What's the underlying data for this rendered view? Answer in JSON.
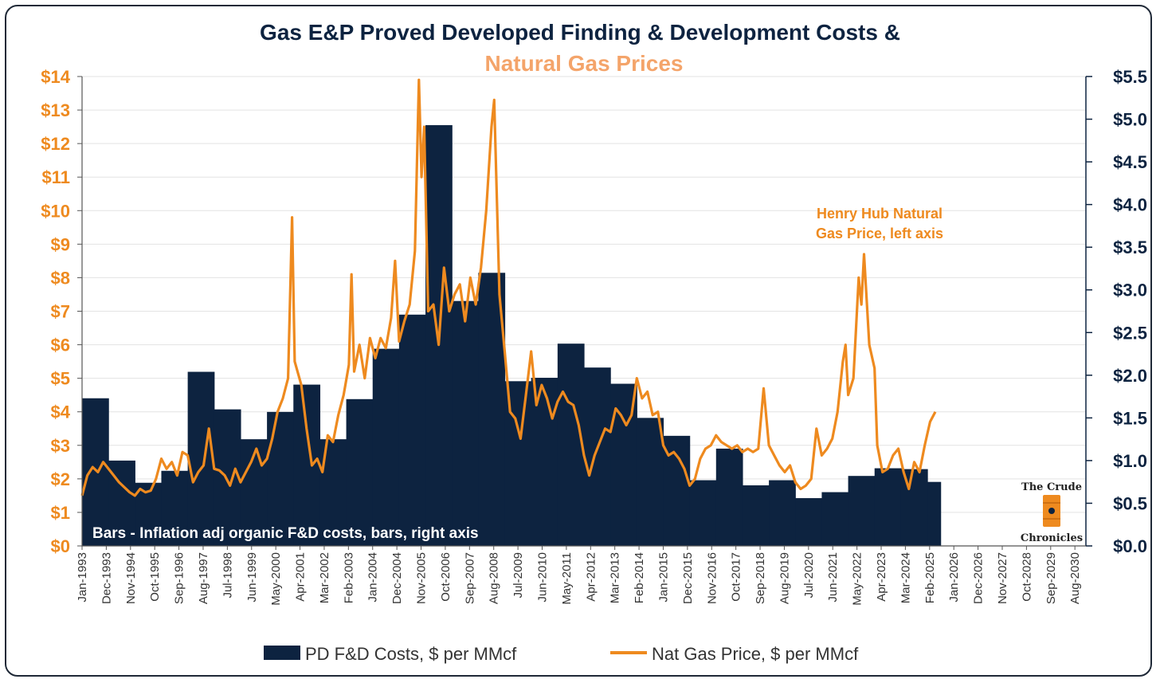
{
  "chart_data": {
    "type": "bar+line",
    "title": "Gas E&P Proved Developed Finding & Development Costs &",
    "subtitle": "Natural Gas Prices",
    "left_axis": {
      "range": [
        0,
        14
      ],
      "ticks": [
        0,
        1,
        2,
        3,
        4,
        5,
        6,
        7,
        8,
        9,
        10,
        11,
        12,
        13,
        14
      ],
      "tick_labels": [
        "$0",
        "$1",
        "$2",
        "$3",
        "$4",
        "$5",
        "$6",
        "$7",
        "$8",
        "$9",
        "$10",
        "$11",
        "$12",
        "$13",
        "$14"
      ],
      "color": "#ee8a1f"
    },
    "right_axis": {
      "range": [
        0,
        5.5
      ],
      "ticks": [
        0,
        0.5,
        1.0,
        1.5,
        2.0,
        2.5,
        3.0,
        3.5,
        4.0,
        4.5,
        5.0,
        5.5
      ],
      "tick_labels": [
        "$0.0",
        "$0.5",
        "$1.0",
        "$1.5",
        "$2.0",
        "$2.5",
        "$3.0",
        "$3.5",
        "$4.0",
        "$4.5",
        "$5.0",
        "$5.5"
      ],
      "color": "#0d2340"
    },
    "x_axis": {
      "range": [
        "1993-01",
        "2030-12"
      ],
      "tick_labels": [
        "Jan-1993",
        "Dec-1993",
        "Nov-1994",
        "Oct-1995",
        "Sep-1996",
        "Aug-1997",
        "Jul-1998",
        "Jun-1999",
        "May-2000",
        "Apr-2001",
        "Mar-2002",
        "Feb-2003",
        "Jan-2004",
        "Dec-2004",
        "Nov-2005",
        "Oct-2006",
        "Sep-2007",
        "Aug-2008",
        "Jul-2009",
        "Jun-2010",
        "May-2011",
        "Apr-2012",
        "Mar-2013",
        "Feb-2014",
        "Jan-2015",
        "Dec-2015",
        "Nov-2016",
        "Oct-2017",
        "Sep-2018",
        "Aug-2019",
        "Jul-2020",
        "Jun-2021",
        "May-2022",
        "Apr-2023",
        "Mar-2024",
        "Feb-2025",
        "Jan-2026",
        "Dec-2026",
        "Nov-2027",
        "Oct-2028",
        "Sep-2029",
        "Aug-2030"
      ],
      "ticks_month_index": [
        0,
        11,
        22,
        33,
        44,
        55,
        66,
        77,
        88,
        99,
        110,
        121,
        132,
        143,
        154,
        165,
        176,
        187,
        198,
        209,
        220,
        231,
        242,
        253,
        264,
        275,
        286,
        297,
        308,
        319,
        330,
        341,
        352,
        363,
        374,
        385,
        396,
        407,
        418,
        429,
        440,
        451
      ]
    },
    "series": [
      {
        "name": "PD F&D Costs, $ per MMcf",
        "type": "bar",
        "axis": "right",
        "color": "#0d2340",
        "periods": [
          {
            "start": 1993,
            "end": 1994,
            "value": 1.73
          },
          {
            "start": 1994,
            "end": 1995,
            "value": 1.0
          },
          {
            "start": 1995,
            "end": 1996,
            "value": 0.74
          },
          {
            "start": 1996,
            "end": 1997,
            "value": 0.88
          },
          {
            "start": 1997,
            "end": 1998,
            "value": 2.04
          },
          {
            "start": 1998,
            "end": 1999,
            "value": 1.6
          },
          {
            "start": 1999,
            "end": 2000,
            "value": 1.25
          },
          {
            "start": 2000,
            "end": 2001,
            "value": 1.57
          },
          {
            "start": 2001,
            "end": 2002,
            "value": 1.89
          },
          {
            "start": 2002,
            "end": 2003,
            "value": 1.25
          },
          {
            "start": 2003,
            "end": 2004,
            "value": 1.72
          },
          {
            "start": 2004,
            "end": 2005,
            "value": 2.31
          },
          {
            "start": 2005,
            "end": 2006,
            "value": 2.71
          },
          {
            "start": 2006,
            "end": 2007,
            "value": 4.93
          },
          {
            "start": 2007,
            "end": 2008,
            "value": 2.87
          },
          {
            "start": 2008,
            "end": 2009,
            "value": 3.2
          },
          {
            "start": 2009,
            "end": 2010,
            "value": 1.93
          },
          {
            "start": 2010,
            "end": 2011,
            "value": 1.97
          },
          {
            "start": 2011,
            "end": 2012,
            "value": 2.37
          },
          {
            "start": 2012,
            "end": 2013,
            "value": 2.09
          },
          {
            "start": 2013,
            "end": 2014,
            "value": 1.9
          },
          {
            "start": 2014,
            "end": 2015,
            "value": 1.5
          },
          {
            "start": 2015,
            "end": 2016,
            "value": 1.29
          },
          {
            "start": 2016,
            "end": 2017,
            "value": 0.77
          },
          {
            "start": 2017,
            "end": 2018,
            "value": 1.14
          },
          {
            "start": 2018,
            "end": 2019,
            "value": 0.71
          },
          {
            "start": 2019,
            "end": 2020,
            "value": 0.77
          },
          {
            "start": 2020,
            "end": 2021,
            "value": 0.56
          },
          {
            "start": 2021,
            "end": 2022,
            "value": 0.63
          },
          {
            "start": 2022,
            "end": 2023,
            "value": 0.82
          },
          {
            "start": 2023,
            "end": 2024,
            "value": 0.91
          },
          {
            "start": 2024,
            "end": 2025,
            "value": 0.9
          },
          {
            "start": 2025,
            "end": 2025.5,
            "value": 0.75
          }
        ]
      },
      {
        "name": "Nat Gas Price, $ per MMcf",
        "type": "line",
        "axis": "left",
        "color": "#ee8a1f",
        "points": [
          [
            1993.0,
            1.5
          ],
          [
            1993.2,
            2.1
          ],
          [
            1993.4,
            2.35
          ],
          [
            1993.6,
            2.2
          ],
          [
            1993.8,
            2.5
          ],
          [
            1994.0,
            2.3
          ],
          [
            1994.2,
            2.1
          ],
          [
            1994.4,
            1.9
          ],
          [
            1994.6,
            1.75
          ],
          [
            1994.8,
            1.6
          ],
          [
            1995.0,
            1.5
          ],
          [
            1995.2,
            1.7
          ],
          [
            1995.4,
            1.6
          ],
          [
            1995.6,
            1.65
          ],
          [
            1995.8,
            2.0
          ],
          [
            1996.0,
            2.6
          ],
          [
            1996.2,
            2.3
          ],
          [
            1996.4,
            2.5
          ],
          [
            1996.6,
            2.1
          ],
          [
            1996.8,
            2.8
          ],
          [
            1997.0,
            2.7
          ],
          [
            1997.2,
            1.9
          ],
          [
            1997.4,
            2.2
          ],
          [
            1997.6,
            2.4
          ],
          [
            1997.8,
            3.5
          ],
          [
            1998.0,
            2.3
          ],
          [
            1998.2,
            2.25
          ],
          [
            1998.4,
            2.1
          ],
          [
            1998.6,
            1.8
          ],
          [
            1998.8,
            2.3
          ],
          [
            1999.0,
            1.9
          ],
          [
            1999.2,
            2.2
          ],
          [
            1999.4,
            2.5
          ],
          [
            1999.6,
            2.9
          ],
          [
            1999.8,
            2.4
          ],
          [
            2000.0,
            2.6
          ],
          [
            2000.2,
            3.2
          ],
          [
            2000.4,
            4.0
          ],
          [
            2000.6,
            4.4
          ],
          [
            2000.8,
            5.0
          ],
          [
            2000.95,
            9.8
          ],
          [
            2001.05,
            5.5
          ],
          [
            2001.3,
            4.8
          ],
          [
            2001.5,
            3.5
          ],
          [
            2001.7,
            2.4
          ],
          [
            2001.9,
            2.6
          ],
          [
            2002.1,
            2.2
          ],
          [
            2002.3,
            3.3
          ],
          [
            2002.5,
            3.1
          ],
          [
            2002.7,
            3.9
          ],
          [
            2002.9,
            4.5
          ],
          [
            2003.1,
            5.4
          ],
          [
            2003.2,
            8.1
          ],
          [
            2003.3,
            5.2
          ],
          [
            2003.5,
            6.0
          ],
          [
            2003.7,
            5.0
          ],
          [
            2003.9,
            6.2
          ],
          [
            2004.1,
            5.6
          ],
          [
            2004.3,
            6.2
          ],
          [
            2004.5,
            5.9
          ],
          [
            2004.7,
            6.8
          ],
          [
            2004.85,
            8.5
          ],
          [
            2005.0,
            6.1
          ],
          [
            2005.2,
            6.7
          ],
          [
            2005.4,
            7.2
          ],
          [
            2005.6,
            8.8
          ],
          [
            2005.75,
            13.9
          ],
          [
            2005.85,
            11.0
          ],
          [
            2005.95,
            12.5
          ],
          [
            2006.1,
            7.0
          ],
          [
            2006.3,
            7.2
          ],
          [
            2006.5,
            6.0
          ],
          [
            2006.7,
            8.3
          ],
          [
            2006.9,
            7.0
          ],
          [
            2007.1,
            7.5
          ],
          [
            2007.3,
            7.8
          ],
          [
            2007.5,
            6.7
          ],
          [
            2007.7,
            8.0
          ],
          [
            2007.9,
            7.2
          ],
          [
            2008.1,
            8.3
          ],
          [
            2008.3,
            10.0
          ],
          [
            2008.5,
            12.5
          ],
          [
            2008.6,
            13.3
          ],
          [
            2008.8,
            7.5
          ],
          [
            2009.0,
            5.8
          ],
          [
            2009.2,
            4.0
          ],
          [
            2009.4,
            3.8
          ],
          [
            2009.6,
            3.2
          ],
          [
            2009.8,
            4.5
          ],
          [
            2010.0,
            5.8
          ],
          [
            2010.2,
            4.2
          ],
          [
            2010.4,
            4.8
          ],
          [
            2010.6,
            4.4
          ],
          [
            2010.8,
            3.8
          ],
          [
            2011.0,
            4.3
          ],
          [
            2011.2,
            4.6
          ],
          [
            2011.4,
            4.3
          ],
          [
            2011.6,
            4.2
          ],
          [
            2011.8,
            3.6
          ],
          [
            2012.0,
            2.7
          ],
          [
            2012.2,
            2.1
          ],
          [
            2012.4,
            2.7
          ],
          [
            2012.6,
            3.1
          ],
          [
            2012.8,
            3.5
          ],
          [
            2013.0,
            3.4
          ],
          [
            2013.2,
            4.1
          ],
          [
            2013.4,
            3.9
          ],
          [
            2013.6,
            3.6
          ],
          [
            2013.8,
            3.9
          ],
          [
            2014.0,
            5.0
          ],
          [
            2014.2,
            4.4
          ],
          [
            2014.4,
            4.6
          ],
          [
            2014.6,
            3.9
          ],
          [
            2014.8,
            4.0
          ],
          [
            2015.0,
            3.0
          ],
          [
            2015.2,
            2.7
          ],
          [
            2015.4,
            2.8
          ],
          [
            2015.6,
            2.6
          ],
          [
            2015.8,
            2.3
          ],
          [
            2016.0,
            1.8
          ],
          [
            2016.2,
            2.0
          ],
          [
            2016.4,
            2.6
          ],
          [
            2016.6,
            2.9
          ],
          [
            2016.8,
            3.0
          ],
          [
            2017.0,
            3.3
          ],
          [
            2017.2,
            3.1
          ],
          [
            2017.4,
            3.0
          ],
          [
            2017.6,
            2.9
          ],
          [
            2017.8,
            3.0
          ],
          [
            2018.0,
            2.8
          ],
          [
            2018.2,
            2.9
          ],
          [
            2018.4,
            2.8
          ],
          [
            2018.6,
            2.9
          ],
          [
            2018.8,
            4.7
          ],
          [
            2019.0,
            3.0
          ],
          [
            2019.2,
            2.7
          ],
          [
            2019.4,
            2.4
          ],
          [
            2019.6,
            2.2
          ],
          [
            2019.8,
            2.4
          ],
          [
            2020.0,
            1.9
          ],
          [
            2020.2,
            1.7
          ],
          [
            2020.4,
            1.8
          ],
          [
            2020.6,
            2.0
          ],
          [
            2020.8,
            3.5
          ],
          [
            2021.0,
            2.7
          ],
          [
            2021.2,
            2.9
          ],
          [
            2021.4,
            3.2
          ],
          [
            2021.6,
            4.0
          ],
          [
            2021.8,
            5.5
          ],
          [
            2021.9,
            6.0
          ],
          [
            2022.0,
            4.5
          ],
          [
            2022.2,
            5.0
          ],
          [
            2022.4,
            8.0
          ],
          [
            2022.5,
            7.2
          ],
          [
            2022.6,
            8.7
          ],
          [
            2022.8,
            6.0
          ],
          [
            2023.0,
            5.3
          ],
          [
            2023.1,
            3.0
          ],
          [
            2023.3,
            2.2
          ],
          [
            2023.5,
            2.3
          ],
          [
            2023.7,
            2.7
          ],
          [
            2023.9,
            2.9
          ],
          [
            2024.1,
            2.2
          ],
          [
            2024.3,
            1.7
          ],
          [
            2024.5,
            2.5
          ],
          [
            2024.7,
            2.2
          ],
          [
            2024.9,
            3.0
          ],
          [
            2025.1,
            3.7
          ],
          [
            2025.3,
            4.0
          ]
        ]
      }
    ],
    "annotations": [
      {
        "text": "Henry Hub Natural",
        "color": "#ee8a1f"
      },
      {
        "text": "Gas Price, left axis",
        "color": "#ee8a1f"
      },
      {
        "text": "Bars - Inflation adj organic F&D costs, bars, right axis",
        "color": "#ffffff"
      }
    ],
    "legend_position": "bottom",
    "grid": true
  },
  "logo": {
    "line1": "The Crude",
    "line2": "Chronicles"
  }
}
